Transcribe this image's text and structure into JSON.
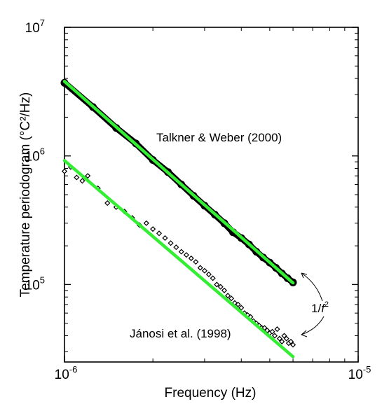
{
  "chart_data": {
    "type": "scatter",
    "xlabel": "Frequency  (Hz)",
    "ylabel": "Temperature periodogram  (°C²/Hz)",
    "xscale": "log",
    "yscale": "log",
    "xlim": [
      1e-06,
      1e-05
    ],
    "ylim": [
      25000,
      10000000
    ],
    "grid": false,
    "x_ticks": [
      {
        "value": 1e-06,
        "base": "10",
        "exp": "-6"
      },
      {
        "value": 1e-05,
        "base": "10",
        "exp": "-5"
      }
    ],
    "y_ticks": [
      {
        "value": 100000,
        "base": "10",
        "exp": "5"
      },
      {
        "value": 1000000,
        "base": "10",
        "exp": "6"
      },
      {
        "value": 10000000,
        "base": "10",
        "exp": "7"
      }
    ],
    "colors": {
      "fit": "#33ee33",
      "data": "#000000",
      "axis": "#000000"
    },
    "series": [
      {
        "name": "Talkner & Weber (2000)",
        "style": "dense-band",
        "x": [
          1e-06,
          1.25e-06,
          1.5e-06,
          1.75e-06,
          2e-06,
          2.25e-06,
          2.5e-06,
          2.75e-06,
          3e-06,
          3.25e-06,
          3.5e-06,
          3.75e-06,
          4e-06,
          4.25e-06,
          4.5e-06,
          4.75e-06,
          5e-06,
          5.25e-06,
          5.5e-06,
          5.75e-06,
          6e-06
        ],
        "y": [
          3700000,
          2400000,
          1650000,
          1250000,
          930000,
          750000,
          600000,
          490000,
          410000,
          350000,
          300000,
          255000,
          230000,
          205000,
          180000,
          162000,
          148000,
          135000,
          122000,
          112000,
          104000
        ]
      },
      {
        "name": "Jánosi et al. (1998)",
        "style": "diamond-markers",
        "x": [
          1e-06,
          1.05e-06,
          1.1e-06,
          1.15e-06,
          1.2e-06,
          1.3e-06,
          1.4e-06,
          1.5e-06,
          1.6e-06,
          1.7e-06,
          1.8e-06,
          1.9e-06,
          2e-06,
          2.1e-06,
          2.2e-06,
          2.3e-06,
          2.4e-06,
          2.5e-06,
          2.6e-06,
          2.7e-06,
          2.8e-06,
          2.9e-06,
          3e-06,
          3.1e-06,
          3.2e-06,
          3.3e-06,
          3.4e-06,
          3.5e-06,
          3.6e-06,
          3.7e-06,
          3.8e-06,
          3.9e-06,
          4e-06,
          4.1e-06,
          4.2e-06,
          4.3e-06,
          4.4e-06,
          4.5e-06,
          4.6e-06,
          4.7e-06,
          4.8e-06,
          4.9e-06,
          5e-06,
          5.1e-06,
          5.2e-06,
          5.3e-06,
          5.4e-06,
          5.5e-06,
          5.6e-06,
          5.7e-06,
          5.8e-06,
          5.9e-06,
          6e-06
        ],
        "y": [
          760000,
          820000,
          680000,
          640000,
          700000,
          560000,
          430000,
          400000,
          370000,
          330000,
          290000,
          300000,
          270000,
          250000,
          230000,
          210000,
          195000,
          180000,
          170000,
          160000,
          150000,
          135000,
          128000,
          120000,
          112000,
          100000,
          96000,
          90000,
          82000,
          78000,
          72000,
          70000,
          66000,
          60000,
          58000,
          56000,
          52000,
          50000,
          48000,
          46000,
          46000,
          44000,
          42000,
          43000,
          40000,
          45000,
          38000,
          36000,
          40000,
          38000,
          35000,
          36000,
          34000
        ]
      }
    ],
    "fits": [
      {
        "label": "1/f²",
        "x": [
          1e-06,
          6e-06
        ],
        "y": [
          3800000,
          103000
        ]
      },
      {
        "label": "1/f²",
        "x": [
          1e-06,
          6e-06
        ],
        "y": [
          920000,
          27500
        ]
      }
    ],
    "annotations": {
      "talkner_label": "Talkner & Weber (2000)",
      "janosi_label": "Jánosi et al. (1998)",
      "slope_label_base": "1/",
      "slope_label_var": "f",
      "slope_label_exp": "2"
    }
  }
}
